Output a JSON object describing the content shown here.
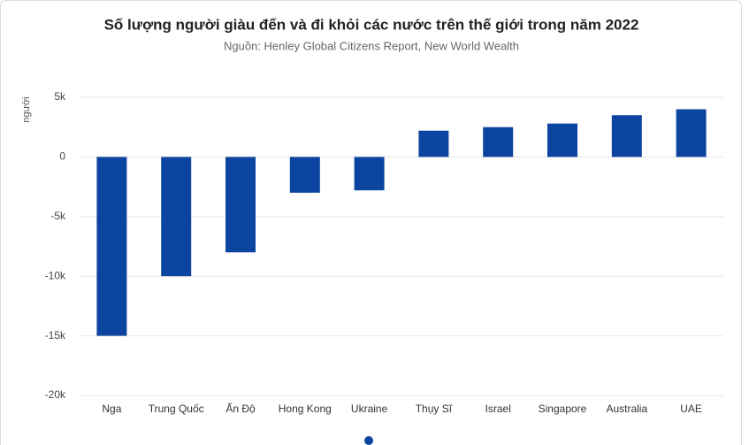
{
  "chart_data": {
    "type": "bar",
    "title": "Số lượng người giàu đến và đi khỏi các nước trên thế giới trong năm 2022",
    "subtitle": "Nguồn: Henley Global Citizens Report, New World Wealth",
    "y_label": "người",
    "categories": [
      "Nga",
      "Trung Quốc",
      "Ấn Độ",
      "Hong Kong",
      "Ukraine",
      "Thụy Sĩ",
      "Israel",
      "Singapore",
      "Australia",
      "UAE"
    ],
    "values": [
      -15000,
      -10000,
      -8000,
      -3000,
      -2800,
      2200,
      2500,
      2800,
      3500,
      4000
    ],
    "color": "#0c45a0",
    "ylim": [
      -20000,
      5000
    ],
    "yticks": [
      {
        "value": -20000,
        "label": "-20k"
      },
      {
        "value": -15000,
        "label": "-15k"
      },
      {
        "value": -10000,
        "label": "-10k"
      },
      {
        "value": -5000,
        "label": "-5k"
      },
      0,
      {
        "value": 5000,
        "label": "5k"
      }
    ],
    "grid": true
  }
}
